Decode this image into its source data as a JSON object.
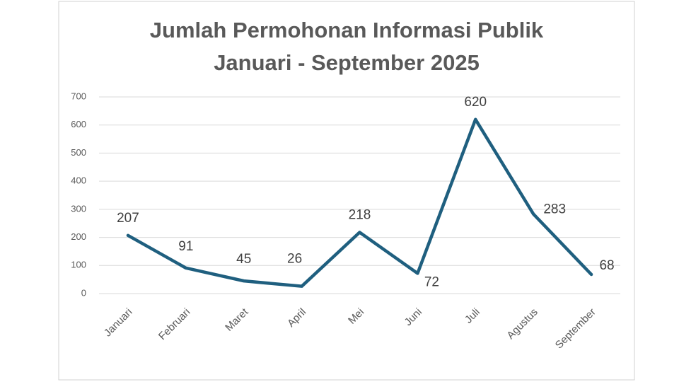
{
  "chart_data": {
    "type": "line",
    "title": [
      "Jumlah Permohonan Informasi Publik",
      "Januari - September 2025"
    ],
    "categories": [
      "Januari",
      "Februari",
      "Maret",
      "April",
      "Mei",
      "Juni",
      "Juli",
      "Agustus",
      "September"
    ],
    "values": [
      207,
      91,
      45,
      26,
      218,
      72,
      620,
      283,
      68
    ],
    "color": "#1f5f7f",
    "ylim": [
      0,
      700
    ],
    "yticks": [
      0,
      100,
      200,
      300,
      400,
      500,
      600,
      700
    ],
    "grid": true
  }
}
